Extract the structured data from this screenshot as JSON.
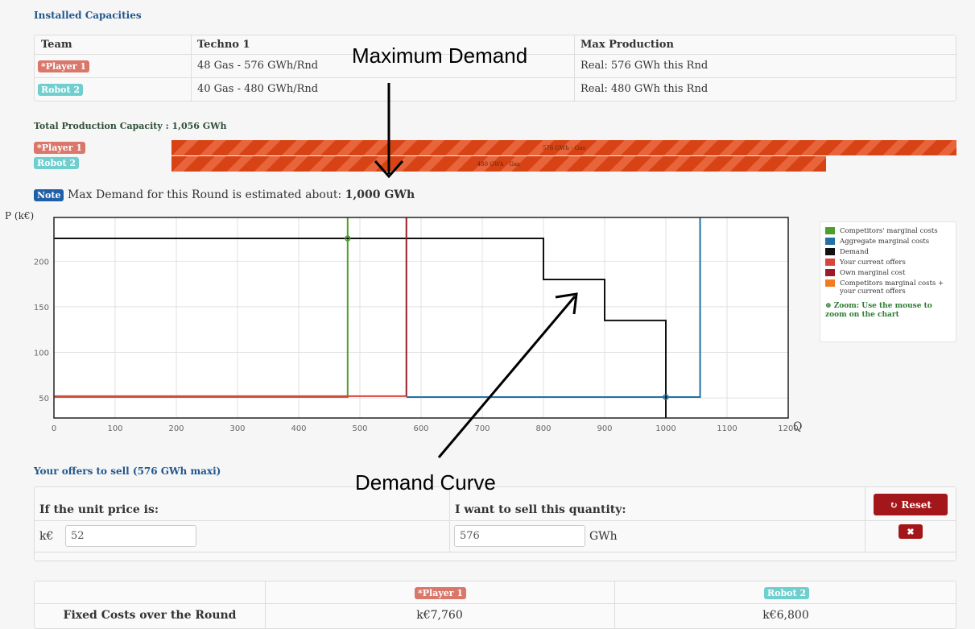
{
  "installed": {
    "title": "Installed Capacities",
    "headers": [
      "Team",
      "Techno 1",
      "Max Production"
    ],
    "rows": [
      [
        "*Player 1",
        "48 Gas - 576 GWh/Rnd",
        "Real: 576 GWh this Rnd"
      ],
      [
        "Robot 2",
        "40 Gas - 480 GWh/Rnd",
        "Real: 480 GWh this Rnd"
      ]
    ]
  },
  "capacity": {
    "title": "Total Production Capacity : 1,056 GWh",
    "bars": [
      {
        "team": "*Player 1",
        "label": "576 GWh - Gas",
        "value": 576
      },
      {
        "team": "Robot 2",
        "label": "480 GWh - Gas",
        "value": 480
      }
    ]
  },
  "note": {
    "badge": "Note",
    "text": "Max Demand for this Round is estimated about:",
    "value": "1,000 GWh"
  },
  "annotations": [
    "Maximum Demand",
    "Demand Curve"
  ],
  "chart_data": {
    "type": "line",
    "ylabel": "P (k€)",
    "xlabel": "Q",
    "xlim": [
      0,
      1200
    ],
    "ylim": [
      28,
      248
    ],
    "xticks": [
      0,
      100,
      200,
      300,
      400,
      500,
      600,
      700,
      800,
      900,
      1000,
      1100,
      1200
    ],
    "yticks": [
      50,
      100,
      150,
      200
    ],
    "grid": true,
    "series": [
      {
        "name": "Competitors' marginal costs",
        "color": "#4f9d2d",
        "x": [
          0,
          480,
          480
        ],
        "values": [
          51,
          51,
          300
        ]
      },
      {
        "name": "Aggregate marginal costs",
        "color": "#2471a3",
        "x": [
          576,
          1056,
          1056
        ],
        "values": [
          51,
          51,
          300
        ]
      },
      {
        "name": "Demand",
        "color": "#111111",
        "x": [
          0,
          800,
          800,
          900,
          900,
          1000,
          1000
        ],
        "values": [
          225,
          225,
          180,
          180,
          135,
          135,
          0
        ]
      },
      {
        "name": "Your current offers",
        "color": "#d9453c",
        "x": [
          0,
          576
        ],
        "values": [
          52,
          52
        ]
      },
      {
        "name": "Own marginal cost",
        "color": "#9b1b2a",
        "x": [
          576,
          576
        ],
        "values": [
          52,
          300
        ]
      },
      {
        "name": "Competitors marginal costs + your current offers",
        "color": "#f47a20",
        "x": [],
        "values": []
      }
    ],
    "markers": [
      {
        "x": 480,
        "y": 225,
        "color": "#4f9d2d"
      },
      {
        "x": 1000,
        "y": 51,
        "color": "#2471a3"
      }
    ],
    "zoom_note": "Zoom: Use the mouse to zoom on the chart"
  },
  "offers": {
    "title": "Your offers to sell (576 GWh maxi)",
    "headers": [
      "If the unit price is:",
      "I want to sell this quantity:"
    ],
    "reset": "Reset",
    "price_unit": "k€",
    "price": "52",
    "quantity": "576",
    "quantity_unit": "GWh"
  },
  "summary": {
    "teams": [
      "*Player 1",
      "Robot 2"
    ],
    "rows": [
      [
        "Fixed Costs over the Round",
        "k€7,760",
        "k€6,800"
      ]
    ]
  }
}
